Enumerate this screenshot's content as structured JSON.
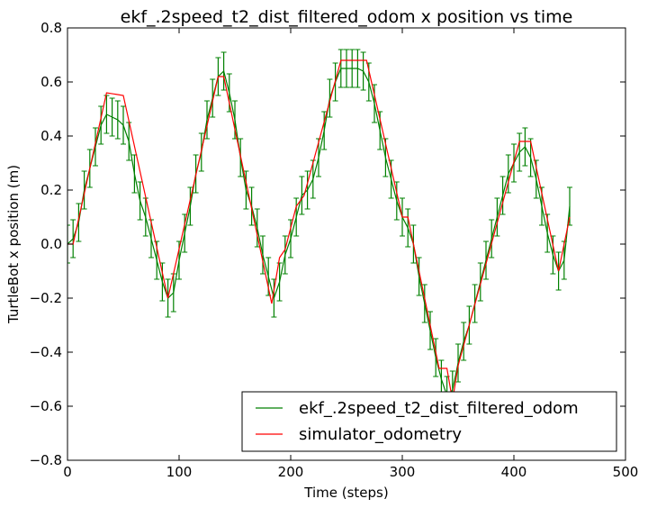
{
  "chart_data": {
    "type": "line",
    "title": "ekf_.2speed_t2_dist_filtered_odom x position vs time",
    "xlabel": "Time (steps)",
    "ylabel": "TurtleBot x position (m)",
    "xlim": [
      0,
      500
    ],
    "ylim": [
      -0.8,
      0.8
    ],
    "xticks": [
      0,
      100,
      200,
      300,
      400,
      500
    ],
    "yticks": [
      -0.8,
      -0.6,
      -0.4,
      -0.2,
      0.0,
      0.2,
      0.4,
      0.6,
      0.8
    ],
    "xtick_labels": [
      "0",
      "100",
      "200",
      "300",
      "400",
      "500"
    ],
    "ytick_labels": [
      "−0.8",
      "−0.6",
      "−0.4",
      "−0.2",
      "0.0",
      "0.2",
      "0.4",
      "0.6",
      "0.8"
    ],
    "grid": false,
    "legend_position": "lower-right",
    "series": [
      {
        "name": "ekf_.2speed_t2_dist_filtered_odom",
        "color": "#008000",
        "errorbar": 0.07,
        "x": [
          0,
          5,
          10,
          15,
          20,
          25,
          30,
          35,
          40,
          45,
          50,
          55,
          60,
          65,
          70,
          75,
          80,
          85,
          90,
          95,
          100,
          105,
          110,
          115,
          120,
          125,
          130,
          135,
          140,
          145,
          150,
          155,
          160,
          165,
          170,
          175,
          180,
          185,
          190,
          195,
          200,
          205,
          210,
          215,
          220,
          225,
          230,
          235,
          240,
          245,
          250,
          255,
          260,
          265,
          270,
          275,
          280,
          285,
          290,
          295,
          300,
          305,
          310,
          315,
          320,
          325,
          330,
          335,
          340,
          345,
          350,
          355,
          360,
          365,
          370,
          375,
          380,
          385,
          390,
          395,
          400,
          405,
          410,
          415,
          420,
          425,
          430,
          435,
          440,
          445,
          450
        ],
        "y": [
          0.0,
          0.02,
          0.08,
          0.2,
          0.28,
          0.36,
          0.44,
          0.48,
          0.47,
          0.46,
          0.44,
          0.38,
          0.26,
          0.16,
          0.1,
          0.02,
          -0.06,
          -0.14,
          -0.2,
          -0.18,
          -0.06,
          0.04,
          0.14,
          0.26,
          0.34,
          0.46,
          0.54,
          0.62,
          0.64,
          0.56,
          0.46,
          0.32,
          0.2,
          0.14,
          0.06,
          -0.04,
          -0.12,
          -0.2,
          -0.14,
          -0.04,
          0.02,
          0.1,
          0.18,
          0.2,
          0.24,
          0.32,
          0.42,
          0.54,
          0.6,
          0.65,
          0.65,
          0.65,
          0.65,
          0.64,
          0.6,
          0.52,
          0.42,
          0.32,
          0.24,
          0.16,
          0.1,
          0.06,
          0.0,
          -0.12,
          -0.22,
          -0.32,
          -0.42,
          -0.5,
          -0.56,
          -0.54,
          -0.44,
          -0.36,
          -0.3,
          -0.22,
          -0.14,
          -0.06,
          0.02,
          0.1,
          0.18,
          0.26,
          0.3,
          0.34,
          0.36,
          0.32,
          0.24,
          0.14,
          0.04,
          -0.04,
          -0.1,
          -0.06,
          0.14
        ]
      },
      {
        "name": "simulator_odometry",
        "color": "#ff0000",
        "x": [
          0,
          5,
          35,
          50,
          90,
          135,
          140,
          183,
          190,
          195,
          205,
          212,
          245,
          268,
          300,
          305,
          333,
          340,
          345,
          350,
          405,
          415,
          440,
          450
        ],
        "y": [
          0.0,
          0.0,
          0.56,
          0.55,
          -0.2,
          0.62,
          0.62,
          -0.22,
          -0.05,
          -0.02,
          0.14,
          0.18,
          0.68,
          0.68,
          0.1,
          0.1,
          -0.46,
          -0.46,
          -0.58,
          -0.45,
          0.38,
          0.38,
          -0.1,
          0.1
        ]
      }
    ]
  }
}
